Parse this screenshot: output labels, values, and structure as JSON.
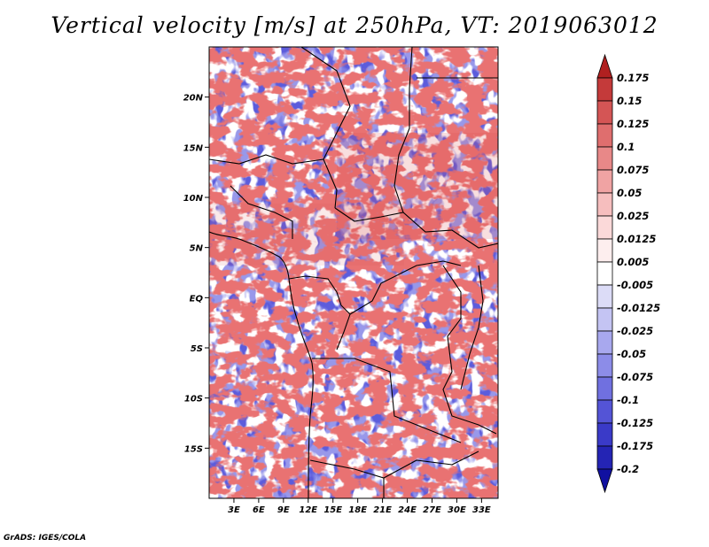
{
  "title": "Vertical velocity [m/s] at 250hPa, VT: 2019063012",
  "credit": "GrADS: IGES/COLA",
  "map": {
    "lat_ticks": [
      "20N",
      "15N",
      "10N",
      "5N",
      "EQ",
      "5S",
      "10S",
      "15S"
    ],
    "lon_ticks": [
      "3E",
      "6E",
      "9E",
      "12E",
      "15E",
      "18E",
      "21E",
      "24E",
      "27E",
      "30E",
      "33E"
    ],
    "lat_range": [
      -20,
      25
    ],
    "lon_range": [
      0,
      35
    ]
  },
  "colorbar": {
    "labels": [
      "0.175",
      "0.15",
      "0.125",
      "0.1",
      "0.075",
      "0.05",
      "0.025",
      "0.0125",
      "0.005",
      "-0.005",
      "-0.0125",
      "-0.025",
      "-0.05",
      "-0.075",
      "-0.1",
      "-0.125",
      "-0.175",
      "-0.2"
    ],
    "colors": [
      "#b02020",
      "#c43a3a",
      "#d45555",
      "#df6e6e",
      "#e88888",
      "#f0a3a3",
      "#f6bebe",
      "#fbd9d9",
      "#fdeeee",
      "#ffffff",
      "#dcdcf7",
      "#c4c4f3",
      "#a8a8ee",
      "#8c8ce8",
      "#7070e0",
      "#5454d6",
      "#3a3ac8",
      "#2424b4",
      "#1010a0"
    ]
  }
}
